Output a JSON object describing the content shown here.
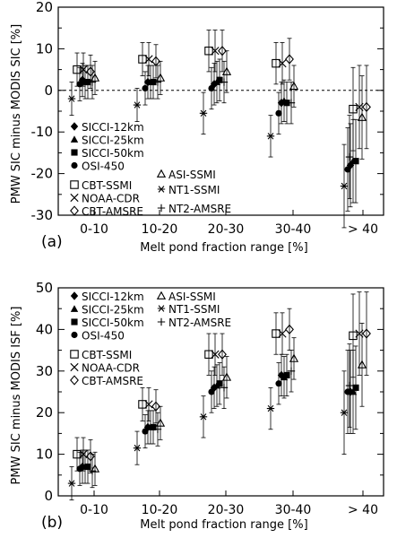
{
  "chart_data": [
    {
      "type": "scatter",
      "panel_label": "(a)",
      "xlabel": "Melt pond fraction range [%]",
      "ylabel": "PMW SIC minus MODIS SIC [%]",
      "categories": [
        "0-10",
        "10-20",
        "20-30",
        "30-40",
        "> 40"
      ],
      "ylim": [
        -30,
        20
      ],
      "yticks": [
        -30,
        -20,
        -10,
        0,
        10,
        20
      ],
      "zero_line": true,
      "error_bars": true,
      "legend_left": [
        "SICCI-12km",
        "SICCI-25km",
        "SICCI-50km",
        "OSI-450",
        "CBT-SSMI",
        "NOAA-CDR",
        "CBT-AMSRE"
      ],
      "legend_right": [
        "ASI-SSMI",
        "NT1-SSMI",
        "NT2-AMSRE"
      ],
      "series": [
        {
          "name": "SICCI-12km",
          "marker": "diamond-filled",
          "values": [
            2.5,
            2.0,
            1.5,
            -3.0,
            -18.0
          ],
          "errors": [
            4,
            4,
            5,
            5,
            10
          ]
        },
        {
          "name": "SICCI-25km",
          "marker": "triangle-filled",
          "values": [
            2.0,
            2.0,
            2.0,
            -2.5,
            -17.0
          ],
          "errors": [
            4,
            4,
            5,
            5,
            10
          ]
        },
        {
          "name": "SICCI-50km",
          "marker": "square-filled",
          "values": [
            2.0,
            2.0,
            2.5,
            -3.0,
            -17.0
          ],
          "errors": [
            4,
            4,
            5,
            5,
            10
          ]
        },
        {
          "name": "OSI-450",
          "marker": "circle-filled",
          "values": [
            1.5,
            0.5,
            0.5,
            -5.5,
            -19.0
          ],
          "errors": [
            4,
            4,
            5,
            5,
            10
          ]
        },
        {
          "name": "CBT-SSMI",
          "marker": "square-open",
          "values": [
            5.0,
            7.5,
            9.5,
            6.5,
            -4.5
          ],
          "errors": [
            4,
            4,
            5,
            5,
            10
          ]
        },
        {
          "name": "NOAA-CDR",
          "marker": "x",
          "values": [
            5.0,
            7.5,
            9.5,
            6.5,
            -4.0
          ],
          "errors": [
            4,
            4,
            5,
            5,
            10
          ]
        },
        {
          "name": "CBT-AMSRE",
          "marker": "diamond-open",
          "values": [
            4.5,
            7.0,
            9.5,
            7.5,
            -4.0
          ],
          "errors": [
            4,
            4,
            5,
            5,
            10
          ]
        },
        {
          "name": "ASI-SSMI",
          "marker": "triangle-open",
          "values": [
            3.0,
            3.0,
            4.5,
            1.0,
            -6.5
          ],
          "errors": [
            4,
            4,
            5,
            5,
            10
          ]
        },
        {
          "name": "NT1-SSMI",
          "marker": "asterisk",
          "values": [
            -2.0,
            -3.5,
            -5.5,
            -11.0,
            -23.0
          ],
          "errors": [
            4,
            4,
            5,
            5,
            10
          ]
        },
        {
          "name": "NT2-AMSRE",
          "marker": "plus",
          "values": [
            2.0,
            2.0,
            2.0,
            -3.0,
            -16.0
          ],
          "errors": [
            4,
            4,
            5,
            5,
            10
          ]
        }
      ]
    },
    {
      "type": "scatter",
      "panel_label": "(b)",
      "xlabel": "Melt pond fraction range [%]",
      "ylabel": "PMW SIC minus MODIS ISF [%]",
      "categories": [
        "0-10",
        "10-20",
        "20-30",
        "30-40",
        "> 40"
      ],
      "ylim": [
        0,
        50
      ],
      "yticks": [
        0,
        10,
        20,
        30,
        40,
        50
      ],
      "zero_line": false,
      "error_bars": true,
      "legend_left": [
        "SICCI-12km",
        "SICCI-25km",
        "SICCI-50km",
        "OSI-450",
        "CBT-SSMI",
        "NOAA-CDR",
        "CBT-AMSRE"
      ],
      "legend_right": [
        "ASI-SSMI",
        "NT1-SSMI",
        "NT2-AMSRE"
      ],
      "series": [
        {
          "name": "SICCI-12km",
          "marker": "diamond-filled",
          "values": [
            7.0,
            16.5,
            26.0,
            29.0,
            25.0
          ],
          "errors": [
            4,
            4,
            5,
            5,
            10
          ]
        },
        {
          "name": "SICCI-25km",
          "marker": "triangle-filled",
          "values": [
            7.0,
            16.5,
            26.5,
            28.5,
            25.0
          ],
          "errors": [
            4,
            4,
            5,
            5,
            10
          ]
        },
        {
          "name": "SICCI-50km",
          "marker": "square-filled",
          "values": [
            7.0,
            16.5,
            27.0,
            29.0,
            26.0
          ],
          "errors": [
            4,
            4,
            5,
            5,
            10
          ]
        },
        {
          "name": "OSI-450",
          "marker": "circle-filled",
          "values": [
            6.5,
            15.5,
            25.0,
            27.0,
            25.0
          ],
          "errors": [
            4,
            4,
            5,
            5,
            10
          ]
        },
        {
          "name": "CBT-SSMI",
          "marker": "square-open",
          "values": [
            10.0,
            22.0,
            34.0,
            39.0,
            38.5
          ],
          "errors": [
            4,
            4,
            5,
            5,
            10
          ]
        },
        {
          "name": "NOAA-CDR",
          "marker": "x",
          "values": [
            10.0,
            22.0,
            34.0,
            39.0,
            39.0
          ],
          "errors": [
            4,
            4,
            5,
            5,
            10
          ]
        },
        {
          "name": "CBT-AMSRE",
          "marker": "diamond-open",
          "values": [
            9.5,
            21.5,
            34.0,
            40.0,
            39.0
          ],
          "errors": [
            4,
            4,
            5,
            5,
            10
          ]
        },
        {
          "name": "ASI-SSMI",
          "marker": "triangle-open",
          "values": [
            6.5,
            17.5,
            28.5,
            33.0,
            31.5
          ],
          "errors": [
            4,
            4,
            5,
            5,
            10
          ]
        },
        {
          "name": "NT1-SSMI",
          "marker": "asterisk",
          "values": [
            3.0,
            11.5,
            19.0,
            21.0,
            20.0
          ],
          "errors": [
            4,
            4,
            5,
            5,
            10
          ]
        },
        {
          "name": "NT2-AMSRE",
          "marker": "plus",
          "values": [
            6.0,
            16.0,
            26.0,
            30.0,
            26.5
          ],
          "errors": [
            4,
            4,
            5,
            5,
            10
          ]
        }
      ]
    }
  ]
}
